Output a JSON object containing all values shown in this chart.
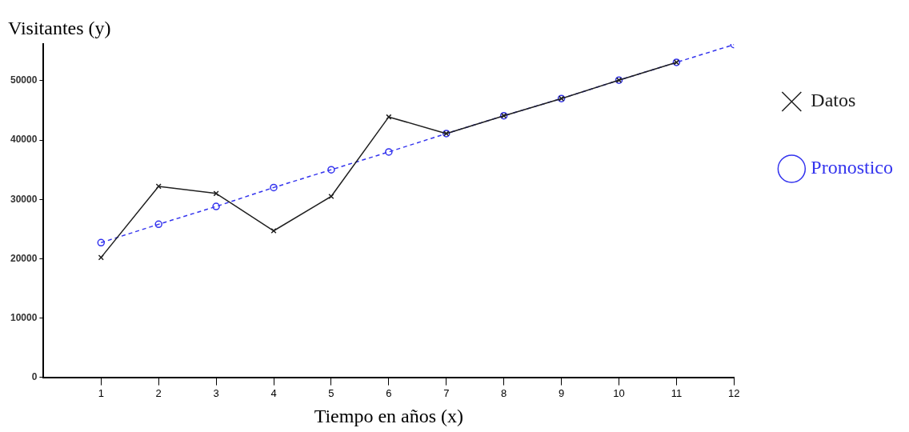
{
  "chart_data": {
    "type": "line",
    "xlabel": "Tiempo en años (x)",
    "ylabel": "Visitantes (y)",
    "x": [
      1,
      2,
      3,
      4,
      5,
      6,
      7,
      8,
      9,
      10,
      11,
      12
    ],
    "xlim": [
      0,
      12
    ],
    "xticks": [
      1,
      2,
      3,
      4,
      5,
      6,
      7,
      8,
      9,
      10,
      11,
      12
    ],
    "ylim": [
      0,
      56200
    ],
    "yticks": [
      0,
      10000,
      20000,
      30000,
      40000,
      50000
    ],
    "grid": false,
    "legend": "right",
    "series": [
      {
        "name": "Datos",
        "color": "#202020",
        "marker": "cross",
        "line_style": "solid",
        "values": [
          20200,
          32200,
          31000,
          24700,
          30500,
          43900,
          41100,
          44100,
          47000,
          50100,
          53100,
          null
        ]
      },
      {
        "name": "Pronostico",
        "color": "#3333ee",
        "marker": "circle",
        "line_style": "dashed",
        "values": [
          22700,
          25800,
          28800,
          32000,
          35000,
          38000,
          41100,
          44100,
          47000,
          50100,
          53100,
          56100
        ]
      }
    ]
  }
}
